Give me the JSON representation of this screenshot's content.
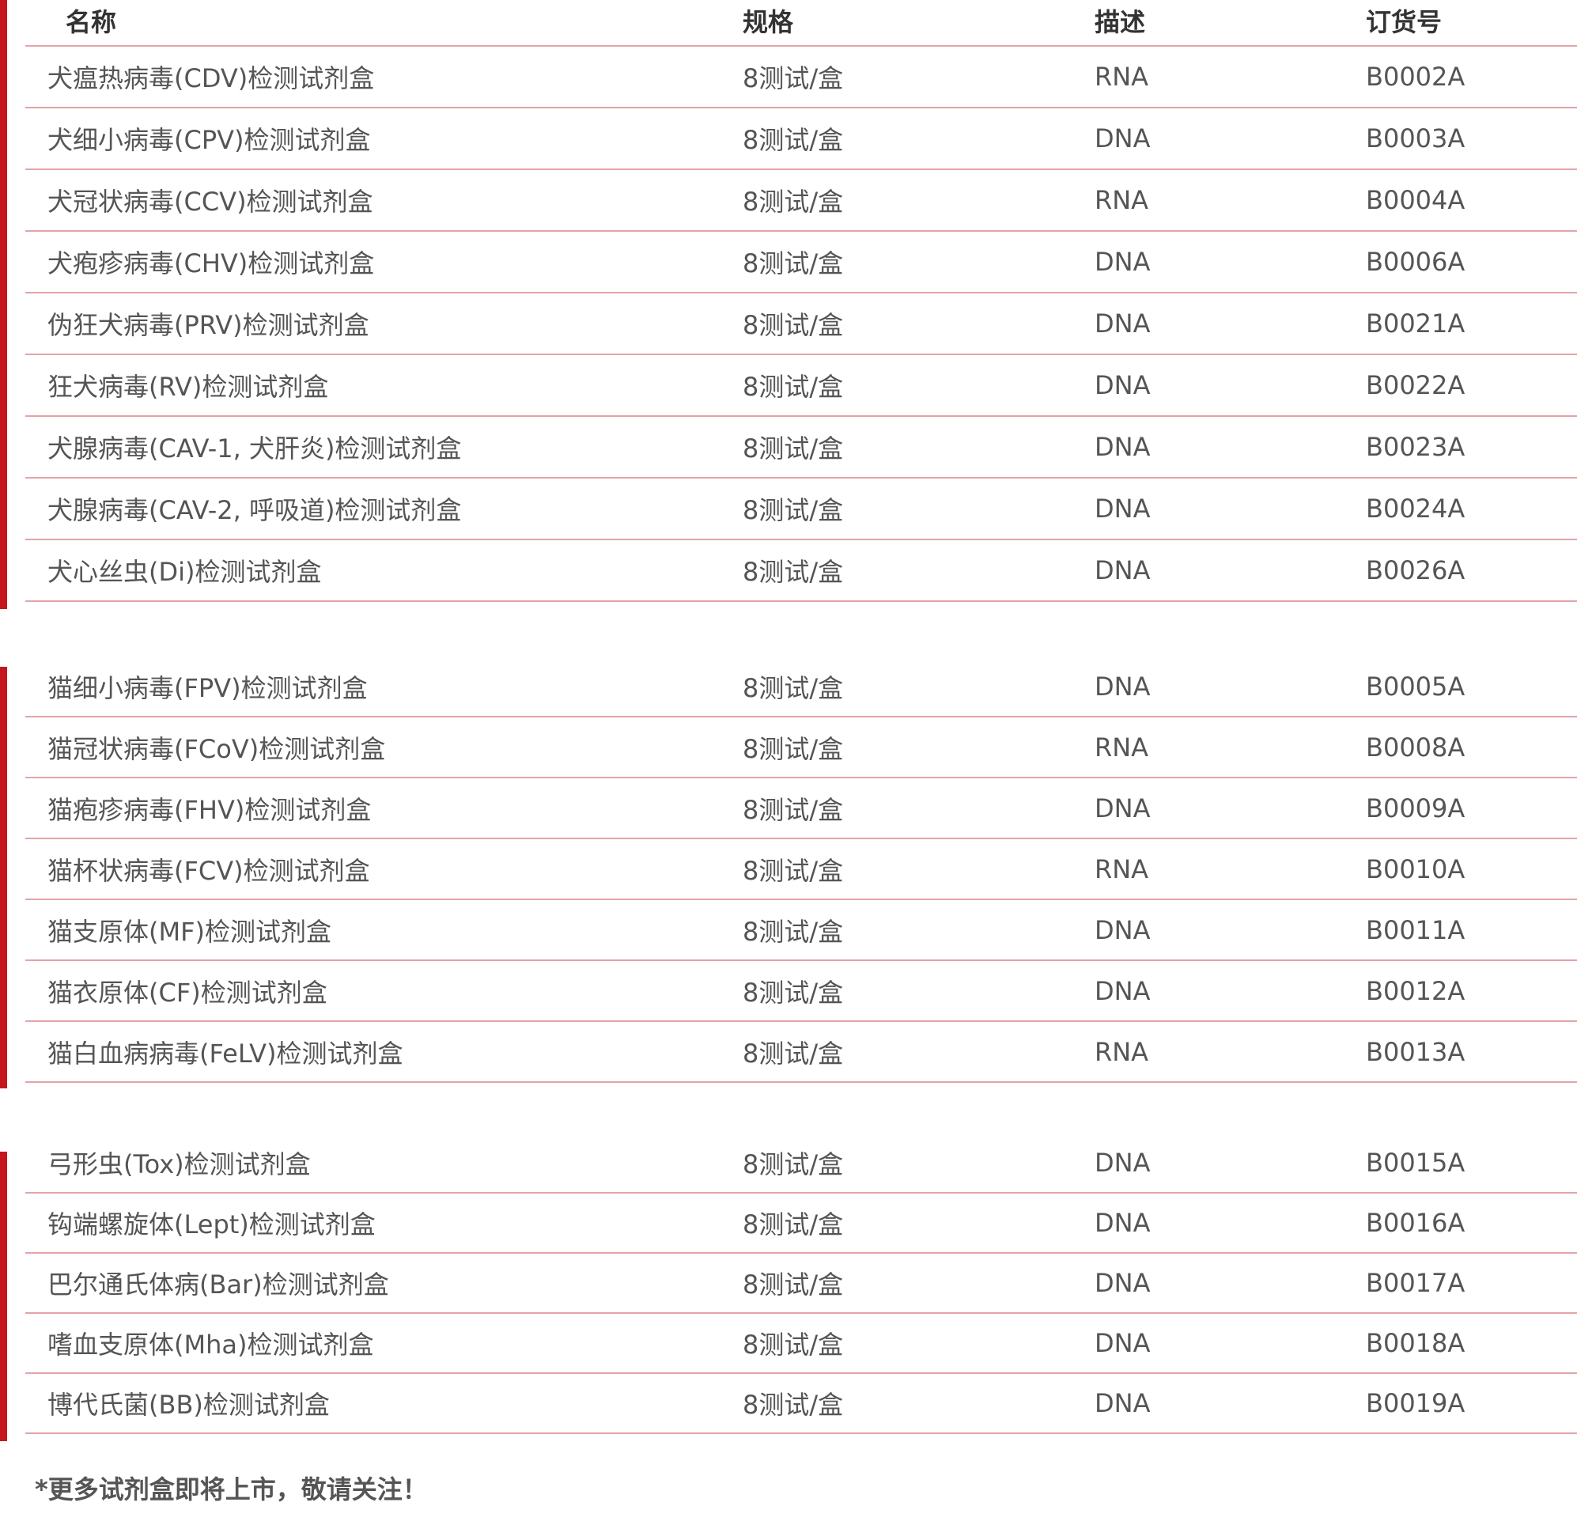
{
  "colors": {
    "accent": "#c4161c",
    "divider": "#e4a3a7"
  },
  "header": {
    "name": "名称",
    "spec": "规格",
    "desc": "描述",
    "code": "订货号"
  },
  "groups": [
    {
      "rows": [
        {
          "name": "犬瘟热病毒(CDV)检测试剂盒",
          "spec": "8测试/盒",
          "desc": "RNA",
          "code": "B0002A"
        },
        {
          "name": "犬细小病毒(CPV)检测试剂盒",
          "spec": "8测试/盒",
          "desc": "DNA",
          "code": "B0003A"
        },
        {
          "name": "犬冠状病毒(CCV)检测试剂盒",
          "spec": "8测试/盒",
          "desc": "RNA",
          "code": "B0004A"
        },
        {
          "name": "犬疱疹病毒(CHV)检测试剂盒",
          "spec": "8测试/盒",
          "desc": "DNA",
          "code": "B0006A"
        },
        {
          "name": "伪狂犬病毒(PRV)检测试剂盒",
          "spec": "8测试/盒",
          "desc": "DNA",
          "code": "B0021A"
        },
        {
          "name": "狂犬病毒(RV)检测试剂盒",
          "spec": "8测试/盒",
          "desc": "DNA",
          "code": "B0022A"
        },
        {
          "name": "犬腺病毒(CAV-1, 犬肝炎)检测试剂盒",
          "spec": "8测试/盒",
          "desc": "DNA",
          "code": "B0023A"
        },
        {
          "name": "犬腺病毒(CAV-2, 呼吸道)检测试剂盒",
          "spec": "8测试/盒",
          "desc": "DNA",
          "code": "B0024A"
        },
        {
          "name": "犬心丝虫(Di)检测试剂盒",
          "spec": "8测试/盒",
          "desc": "DNA",
          "code": "B0026A"
        }
      ]
    },
    {
      "rows": [
        {
          "name": "猫细小病毒(FPV)检测试剂盒",
          "spec": "8测试/盒",
          "desc": "DNA",
          "code": "B0005A"
        },
        {
          "name": "猫冠状病毒(FCoV)检测试剂盒",
          "spec": "8测试/盒",
          "desc": "RNA",
          "code": "B0008A"
        },
        {
          "name": "猫疱疹病毒(FHV)检测试剂盒",
          "spec": "8测试/盒",
          "desc": "DNA",
          "code": "B0009A"
        },
        {
          "name": "猫杯状病毒(FCV)检测试剂盒",
          "spec": "8测试/盒",
          "desc": "RNA",
          "code": "B0010A"
        },
        {
          "name": "猫支原体(MF)检测试剂盒",
          "spec": "8测试/盒",
          "desc": "DNA",
          "code": "B0011A"
        },
        {
          "name": "猫衣原体(CF)检测试剂盒",
          "spec": "8测试/盒",
          "desc": "DNA",
          "code": "B0012A"
        },
        {
          "name": "猫白血病病毒(FeLV)检测试剂盒",
          "spec": "8测试/盒",
          "desc": "RNA",
          "code": "B0013A"
        }
      ]
    },
    {
      "rows": [
        {
          "name": "弓形虫(Tox)检测试剂盒",
          "spec": "8测试/盒",
          "desc": "DNA",
          "code": "B0015A"
        },
        {
          "name": "钩端螺旋体(Lept)检测试剂盒",
          "spec": "8测试/盒",
          "desc": "DNA",
          "code": "B0016A"
        },
        {
          "name": "巴尔通氏体病(Bar)检测试剂盒",
          "spec": "8测试/盒",
          "desc": "DNA",
          "code": "B0017A"
        },
        {
          "name": "嗜血支原体(Mha)检测试剂盒",
          "spec": "8测试/盒",
          "desc": "DNA",
          "code": "B0018A"
        },
        {
          "name": "博代氏菌(BB)检测试剂盒",
          "spec": "8测试/盒",
          "desc": "DNA",
          "code": "B0019A"
        }
      ]
    }
  ],
  "footnote": "*更多试剂盒即将上市，敬请关注！"
}
